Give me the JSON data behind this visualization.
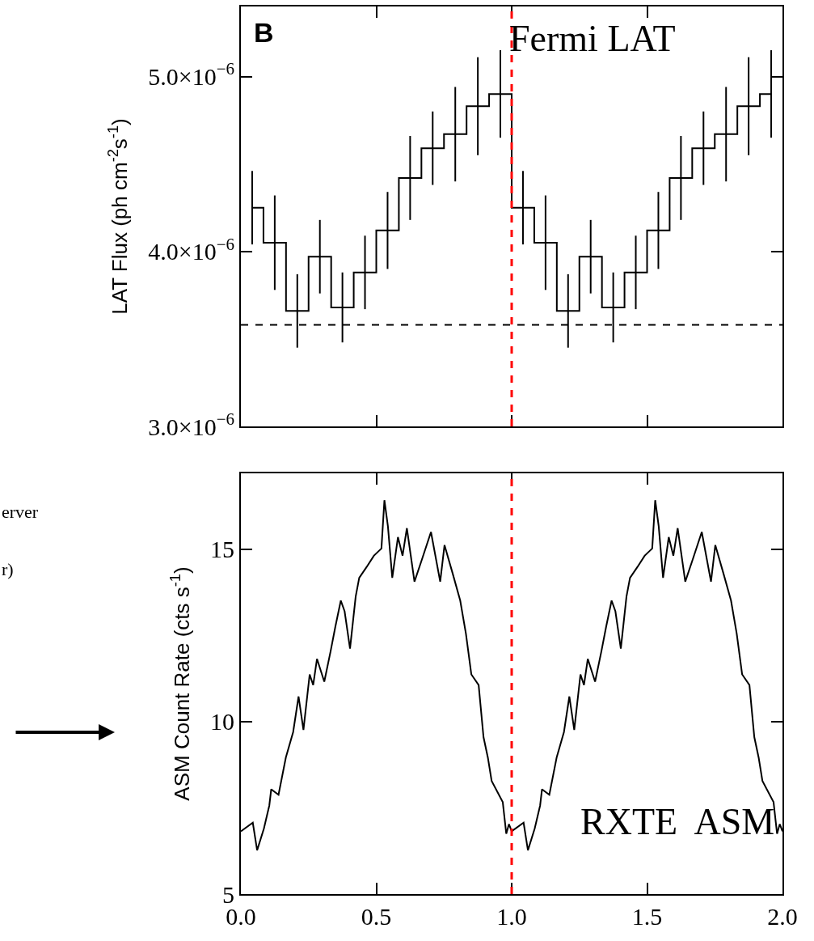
{
  "chart_data": [
    {
      "type": "step",
      "ylabel": "LAT Flux (ph cm$^{-2}$s$^{-1}$)",
      "color": "#000000",
      "xlim": [
        0,
        2
      ],
      "xticks": [
        {
          "value": 0,
          "label": null
        },
        {
          "value": 0.5,
          "label": null
        },
        {
          "value": 1.0,
          "label": null
        },
        {
          "value": 1.5,
          "label": null
        },
        {
          "value": 2.0,
          "label": null
        }
      ],
      "ylim": [
        3e-06,
        5.4e-06
      ],
      "yticks": [
        {
          "value": 3e-06,
          "label": "3.0×10$^{−6}$"
        },
        {
          "value": 4e-06,
          "label": "4.0×10$^{−6}$"
        },
        {
          "value": 5e-06,
          "label": "5.0×10$^{−6}$"
        }
      ],
      "tick_labels": "y",
      "x": [
        0.0417,
        0.125,
        0.2083,
        0.2917,
        0.375,
        0.4583,
        0.5417,
        0.625,
        0.7083,
        0.7917,
        0.875,
        0.9583,
        1.0417,
        1.125,
        1.2083,
        1.2917,
        1.375,
        1.4583,
        1.5417,
        1.625,
        1.7083,
        1.7917,
        1.875,
        1.9583
      ],
      "values": [
        4.25e-06,
        4.05e-06,
        3.66e-06,
        3.97e-06,
        3.68e-06,
        3.88e-06,
        4.12e-06,
        4.42e-06,
        4.59e-06,
        4.67e-06,
        4.83e-06,
        4.9e-06,
        4.25e-06,
        4.05e-06,
        3.66e-06,
        3.97e-06,
        3.68e-06,
        3.88e-06,
        4.12e-06,
        4.42e-06,
        4.59e-06,
        4.67e-06,
        4.83e-06,
        4.9e-06
      ],
      "errors": [
        2.1e-07,
        2.7e-07,
        2.1e-07,
        2.1e-07,
        2e-07,
        2.1e-07,
        2.2e-07,
        2.4e-07,
        2.1e-07,
        2.7e-07,
        2.8e-07,
        2.5e-07,
        2.1e-07,
        2.7e-07,
        2.1e-07,
        2.1e-07,
        2e-07,
        2.1e-07,
        2.2e-07,
        2.4e-07,
        2.1e-07,
        2.7e-07,
        2.8e-07,
        2.5e-07
      ],
      "ref_lines": [
        {
          "axis": "y",
          "value": 3.58e-06,
          "line_style": "dashed",
          "color": "#000000"
        },
        {
          "axis": "x",
          "value": 1.0,
          "line_style": "dashed",
          "color": "#ff0000"
        }
      ],
      "annotations": [
        "B",
        "Fermi LAT"
      ]
    },
    {
      "type": "line",
      "ylabel": "ASM Count Rate (cts s$^{-1}$)",
      "color": "#000000",
      "xlim": [
        0,
        2
      ],
      "xticks": [
        {
          "value": 0,
          "label": "0.0"
        },
        {
          "value": 0.5,
          "label": "0.5"
        },
        {
          "value": 1.0,
          "label": "1.0"
        },
        {
          "value": 1.5,
          "label": "1.5"
        },
        {
          "value": 2.0,
          "label": "2.0"
        }
      ],
      "ylim": [
        5,
        17.2
      ],
      "yticks": [
        5,
        10,
        15
      ],
      "x": [
        0,
        0.044,
        0.06,
        0.085,
        0.105,
        0.112,
        0.139,
        0.166,
        0.193,
        0.213,
        0.231,
        0.254,
        0.267,
        0.281,
        0.308,
        0.331,
        0.349,
        0.369,
        0.383,
        0.403,
        0.424,
        0.437,
        0.464,
        0.491,
        0.519,
        0.53,
        0.543,
        0.559,
        0.58,
        0.597,
        0.613,
        0.641,
        0.668,
        0.702,
        0.736,
        0.752,
        0.783,
        0.81,
        0.831,
        0.851,
        0.878,
        0.896,
        0.912,
        0.926,
        0.967,
        0.98,
        0.99,
        1.0,
        1.044,
        1.06,
        1.085,
        1.105,
        1.112,
        1.139,
        1.166,
        1.193,
        1.213,
        1.231,
        1.254,
        1.267,
        1.281,
        1.308,
        1.331,
        1.349,
        1.369,
        1.383,
        1.403,
        1.424,
        1.437,
        1.464,
        1.491,
        1.519,
        1.53,
        1.543,
        1.559,
        1.58,
        1.597,
        1.613,
        1.641,
        1.668,
        1.702,
        1.736,
        1.752,
        1.783,
        1.81,
        1.831,
        1.851,
        1.878,
        1.896,
        1.912,
        1.926,
        1.967,
        1.98,
        1.99,
        2.0
      ],
      "values": [
        6.82,
        7.07,
        6.27,
        6.9,
        7.57,
        8.04,
        7.88,
        8.96,
        9.7,
        10.73,
        9.76,
        11.37,
        11.06,
        11.82,
        11.16,
        12.03,
        12.76,
        13.51,
        13.2,
        12.12,
        13.63,
        14.17,
        14.48,
        14.81,
        15.02,
        16.42,
        15.66,
        14.17,
        15.35,
        14.81,
        15.61,
        14.06,
        14.69,
        15.5,
        14.06,
        15.12,
        14.27,
        13.51,
        12.55,
        11.37,
        11.06,
        9.55,
        8.96,
        8.28,
        7.67,
        6.75,
        7.03,
        6.82,
        7.07,
        6.27,
        6.9,
        7.57,
        8.04,
        7.88,
        8.96,
        9.7,
        10.73,
        9.76,
        11.37,
        11.06,
        11.82,
        11.16,
        12.03,
        12.76,
        13.51,
        13.2,
        12.12,
        13.63,
        14.17,
        14.48,
        14.81,
        15.02,
        16.42,
        15.66,
        14.17,
        15.35,
        14.81,
        15.61,
        14.06,
        14.69,
        15.5,
        14.06,
        15.12,
        14.27,
        13.51,
        12.55,
        11.37,
        11.06,
        9.55,
        8.96,
        8.28,
        7.67,
        6.75,
        7.03,
        6.82
      ],
      "ref_lines": [
        {
          "axis": "x",
          "value": 1.0,
          "line_style": "dashed",
          "color": "#ff0000"
        }
      ],
      "annotations": [
        "RXTE  ASM",
        "erver",
        "r)"
      ]
    }
  ]
}
